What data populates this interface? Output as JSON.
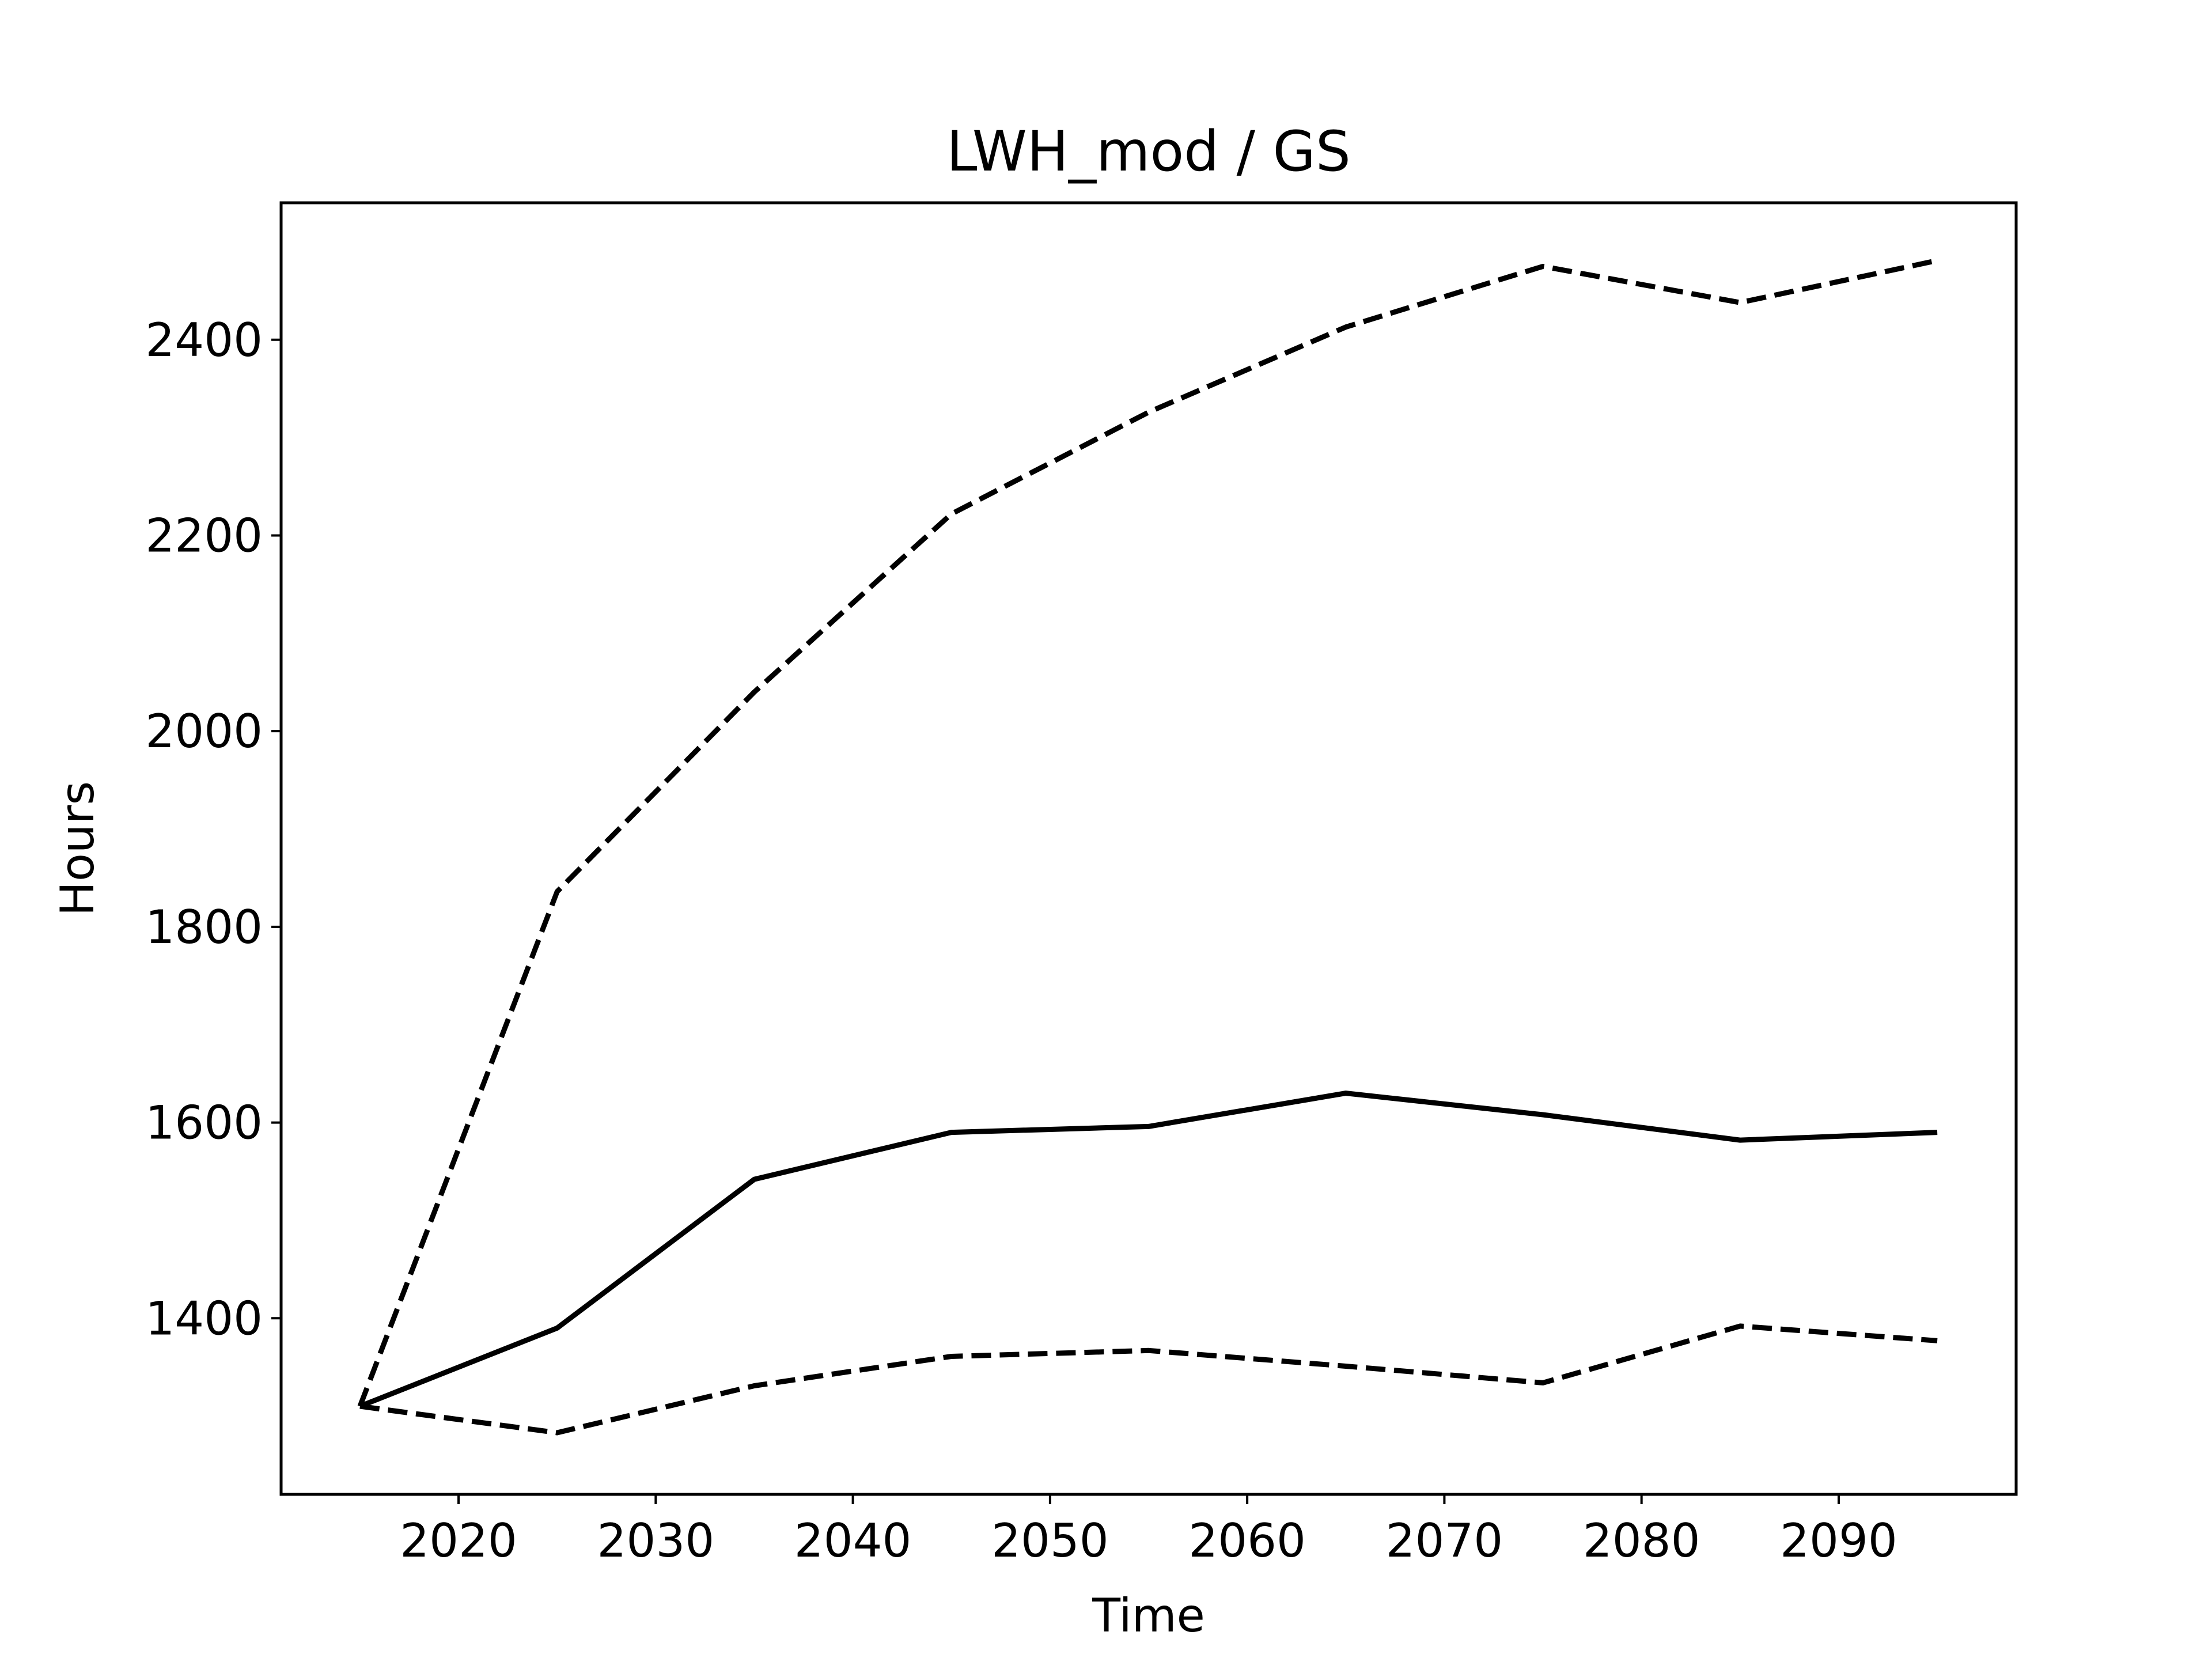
{
  "chart_data": {
    "type": "line",
    "title": "LWH_mod / GS",
    "xlabel": "Time",
    "ylabel": "Hours",
    "xlim": [
      2011,
      2099
    ],
    "ylim": [
      1220,
      2540
    ],
    "xticks": [
      2020,
      2030,
      2040,
      2050,
      2060,
      2070,
      2080,
      2090
    ],
    "yticks": [
      1400,
      1600,
      1800,
      2000,
      2200,
      2400
    ],
    "grid": false,
    "legend": "none",
    "x": [
      2015,
      2025,
      2035,
      2045,
      2055,
      2065,
      2075,
      2085,
      2095
    ],
    "series": [
      {
        "style": "dashed",
        "color": "#000000",
        "values": [
          1310,
          1836,
          2040,
          2222,
          2326,
          2413,
          2475,
          2438,
          2481
        ]
      },
      {
        "style": "solid",
        "color": "#000000",
        "values": [
          1310,
          1390,
          1542,
          1590,
          1596,
          1630,
          1608,
          1582,
          1590
        ]
      },
      {
        "style": "dashed",
        "color": "#000000",
        "values": [
          1310,
          1283,
          1331,
          1361,
          1367,
          1351,
          1334,
          1392,
          1377
        ]
      }
    ]
  }
}
